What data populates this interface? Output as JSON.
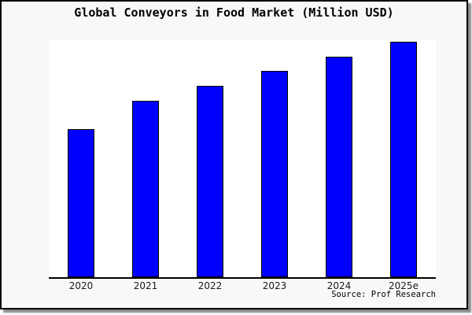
{
  "title": "Global Conveyors in Food Market (Million USD)",
  "source": "Source: Prof Research",
  "frame": {
    "background": "#f8f8f8",
    "border_color": "#000000",
    "shadow_color": "#8a8a8a"
  },
  "chart_data": {
    "type": "bar",
    "title": "Global Conveyors in Food Market (Million USD)",
    "categories": [
      "2020",
      "2021",
      "2022",
      "2023",
      "2024",
      "2025e"
    ],
    "values": [
      62.9,
      75.0,
      81.3,
      87.7,
      93.8,
      100.0
    ],
    "value_scale": "relative units estimated from bar heights; chart shows no y-axis tick labels (2025e bar = 100)",
    "xlabel": "",
    "ylabel": "",
    "ylim": [
      0,
      101
    ],
    "gridlines": false,
    "legend": false,
    "y_axis_ticks_visible": false,
    "bar_color": "#0000ff",
    "bar_edge_color": "#000000",
    "axis_color": "#000000",
    "plot_background": "#ffffff"
  }
}
